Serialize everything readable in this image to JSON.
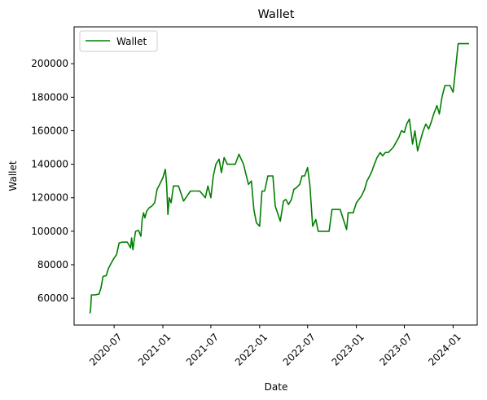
{
  "chart_data": {
    "type": "line",
    "title": "Wallet",
    "xlabel": "Date",
    "ylabel": "Wallet",
    "xlim": [
      "2020-02-01",
      "2024-04-01"
    ],
    "ylim": [
      44000,
      222000
    ],
    "grid": false,
    "legend_position": "top-left",
    "x_ticks": [
      "2020-07",
      "2021-01",
      "2021-07",
      "2022-01",
      "2022-07",
      "2023-01",
      "2023-07",
      "2024-01"
    ],
    "y_ticks": [
      60000,
      80000,
      100000,
      120000,
      140000,
      160000,
      180000,
      200000
    ],
    "series": [
      {
        "name": "Wallet",
        "color": "#008000",
        "x": [
          "2020-04-01",
          "2020-04-03",
          "2020-04-06",
          "2020-04-20",
          "2020-05-05",
          "2020-05-12",
          "2020-05-20",
          "2020-06-01",
          "2020-06-10",
          "2020-06-20",
          "2020-07-01",
          "2020-07-10",
          "2020-07-20",
          "2020-08-01",
          "2020-08-20",
          "2020-09-01",
          "2020-09-05",
          "2020-09-10",
          "2020-09-15",
          "2020-09-20",
          "2020-10-01",
          "2020-10-10",
          "2020-10-15",
          "2020-10-20",
          "2020-10-25",
          "2020-11-01",
          "2020-11-10",
          "2020-11-20",
          "2020-12-01",
          "2020-12-10",
          "2020-12-20",
          "2021-01-01",
          "2021-01-10",
          "2021-01-15",
          "2021-01-20",
          "2021-01-25",
          "2021-02-01",
          "2021-02-10",
          "2021-02-20",
          "2021-03-01",
          "2021-03-20",
          "2021-04-15",
          "2021-05-01",
          "2021-05-20",
          "2021-06-10",
          "2021-06-20",
          "2021-07-01",
          "2021-07-10",
          "2021-07-20",
          "2021-08-01",
          "2021-08-10",
          "2021-08-20",
          "2021-09-01",
          "2021-09-10",
          "2021-09-20",
          "2021-10-01",
          "2021-10-15",
          "2021-11-01",
          "2021-11-20",
          "2021-12-01",
          "2021-12-10",
          "2021-12-20",
          "2022-01-01",
          "2022-01-10",
          "2022-01-20",
          "2022-02-01",
          "2022-02-10",
          "2022-02-20",
          "2022-03-01",
          "2022-03-20",
          "2022-04-01",
          "2022-04-10",
          "2022-04-20",
          "2022-05-01",
          "2022-05-10",
          "2022-05-20",
          "2022-06-01",
          "2022-06-10",
          "2022-06-20",
          "2022-07-01",
          "2022-07-10",
          "2022-07-20",
          "2022-08-01",
          "2022-08-10",
          "2022-08-20",
          "2022-09-01",
          "2022-09-10",
          "2022-09-20",
          "2022-10-01",
          "2022-11-01",
          "2022-11-25",
          "2022-12-01",
          "2022-12-10",
          "2022-12-20",
          "2023-01-01",
          "2023-01-20",
          "2023-02-01",
          "2023-02-10",
          "2023-02-20",
          "2023-03-01",
          "2023-03-10",
          "2023-03-20",
          "2023-04-01",
          "2023-04-10",
          "2023-04-20",
          "2023-05-01",
          "2023-05-20",
          "2023-06-10",
          "2023-06-20",
          "2023-07-01",
          "2023-07-10",
          "2023-07-20",
          "2023-08-01",
          "2023-08-10",
          "2023-08-20",
          "2023-09-01",
          "2023-09-10",
          "2023-09-20",
          "2023-10-01",
          "2023-10-10",
          "2023-10-20",
          "2023-11-01",
          "2023-11-10",
          "2023-11-20",
          "2023-12-01",
          "2023-12-10",
          "2023-12-20",
          "2024-01-01",
          "2024-01-20",
          "2024-02-01",
          "2024-02-05",
          "2024-02-10",
          "2024-03-01"
        ],
        "values": [
          51000,
          53000,
          62000,
          62000,
          62500,
          66000,
          73000,
          73500,
          78000,
          81000,
          84000,
          86000,
          93000,
          93500,
          93500,
          90000,
          96000,
          89000,
          95000,
          100000,
          100500,
          97000,
          107000,
          111000,
          108000,
          112000,
          114000,
          115000,
          117000,
          125000,
          128000,
          132000,
          137000,
          128000,
          110000,
          120000,
          117000,
          127000,
          127000,
          127000,
          118000,
          124000,
          124000,
          124000,
          120000,
          127000,
          120000,
          133000,
          140000,
          143000,
          135000,
          144000,
          140000,
          140000,
          140000,
          140000,
          146000,
          140000,
          128000,
          130000,
          113000,
          105000,
          103000,
          124000,
          124000,
          133000,
          133000,
          133000,
          115000,
          106000,
          118000,
          119000,
          116000,
          119000,
          125000,
          126000,
          128000,
          133000,
          133000,
          138000,
          127000,
          103000,
          107000,
          100000,
          100000,
          100000,
          100000,
          100000,
          113000,
          113000,
          101000,
          111000,
          111000,
          111000,
          117000,
          121000,
          125000,
          130000,
          133000,
          136000,
          140000,
          144000,
          147000,
          145000,
          147000,
          147000,
          150000,
          156000,
          160000,
          159000,
          164000,
          167000,
          152000,
          160000,
          148000,
          155000,
          160000,
          164000,
          161000,
          165000,
          170000,
          175000,
          170000,
          180000,
          187000,
          187000,
          187000,
          183000,
          212000,
          212000,
          212000,
          212000,
          212000
        ]
      }
    ]
  }
}
